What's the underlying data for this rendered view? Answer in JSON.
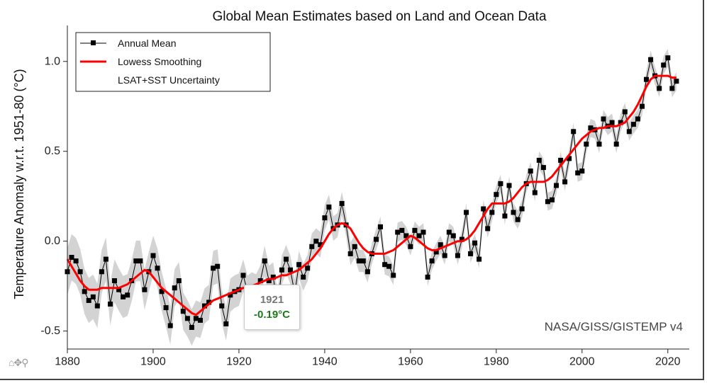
{
  "chart_data": {
    "type": "line",
    "title": "Global Mean Estimates based on Land and Ocean Data",
    "xlabel": "",
    "ylabel": "Temperature Anomaly w.r.t. 1951-80 (°C)",
    "xlim": [
      1880,
      2025
    ],
    "ylim": [
      -0.6,
      1.2
    ],
    "x_ticks": [
      1880,
      1900,
      1920,
      1940,
      1960,
      1980,
      2000,
      2020
    ],
    "x_tick_labels": [
      "1880",
      "1900",
      "1920",
      "1940",
      "1960",
      "1980",
      "2000",
      "2020"
    ],
    "y_ticks": [
      -0.5,
      0.0,
      0.5,
      1.0
    ],
    "y_tick_labels": [
      "-0.5",
      "0.0",
      "0.5",
      "1.0"
    ],
    "grid": false,
    "legend_position": "top-left",
    "credit": "NASA/GISS/GISTEMP v4",
    "colors": {
      "annual": "#000000",
      "lowess": "#ff0000",
      "uncertainty": "#d3d3d3"
    },
    "x": [
      1880,
      1881,
      1882,
      1883,
      1884,
      1885,
      1886,
      1887,
      1888,
      1889,
      1890,
      1891,
      1892,
      1893,
      1894,
      1895,
      1896,
      1897,
      1898,
      1899,
      1900,
      1901,
      1902,
      1903,
      1904,
      1905,
      1906,
      1907,
      1908,
      1909,
      1910,
      1911,
      1912,
      1913,
      1914,
      1915,
      1916,
      1917,
      1918,
      1919,
      1920,
      1921,
      1922,
      1923,
      1924,
      1925,
      1926,
      1927,
      1928,
      1929,
      1930,
      1931,
      1932,
      1933,
      1934,
      1935,
      1936,
      1937,
      1938,
      1939,
      1940,
      1941,
      1942,
      1943,
      1944,
      1945,
      1946,
      1947,
      1948,
      1949,
      1950,
      1951,
      1952,
      1953,
      1954,
      1955,
      1956,
      1957,
      1958,
      1959,
      1960,
      1961,
      1962,
      1963,
      1964,
      1965,
      1966,
      1967,
      1968,
      1969,
      1970,
      1971,
      1972,
      1973,
      1974,
      1975,
      1976,
      1977,
      1978,
      1979,
      1980,
      1981,
      1982,
      1983,
      1984,
      1985,
      1986,
      1987,
      1988,
      1989,
      1990,
      1991,
      1992,
      1993,
      1994,
      1995,
      1996,
      1997,
      1998,
      1999,
      2000,
      2001,
      2002,
      2003,
      2004,
      2005,
      2006,
      2007,
      2008,
      2009,
      2010,
      2011,
      2012,
      2013,
      2014,
      2015,
      2016,
      2017,
      2018,
      2019,
      2020,
      2021,
      2022
    ],
    "series": [
      {
        "name": "Annual Mean",
        "values": [
          -0.17,
          -0.09,
          -0.11,
          -0.17,
          -0.28,
          -0.33,
          -0.31,
          -0.36,
          -0.17,
          -0.1,
          -0.35,
          -0.22,
          -0.27,
          -0.31,
          -0.3,
          -0.22,
          -0.11,
          -0.11,
          -0.27,
          -0.17,
          -0.08,
          -0.15,
          -0.28,
          -0.37,
          -0.47,
          -0.26,
          -0.22,
          -0.39,
          -0.43,
          -0.48,
          -0.43,
          -0.44,
          -0.36,
          -0.34,
          -0.15,
          -0.14,
          -0.36,
          -0.46,
          -0.3,
          -0.28,
          -0.27,
          -0.19,
          -0.28,
          -0.26,
          -0.27,
          -0.22,
          -0.11,
          -0.22,
          -0.2,
          -0.36,
          -0.16,
          -0.1,
          -0.16,
          -0.29,
          -0.13,
          -0.2,
          -0.15,
          -0.03,
          -0.0,
          -0.02,
          0.13,
          0.19,
          0.07,
          0.09,
          0.21,
          0.09,
          -0.07,
          -0.03,
          -0.11,
          -0.11,
          -0.17,
          -0.07,
          0.01,
          0.08,
          -0.13,
          -0.14,
          -0.19,
          0.05,
          0.06,
          0.03,
          -0.03,
          0.06,
          0.03,
          0.05,
          -0.2,
          -0.11,
          -0.06,
          -0.02,
          -0.08,
          0.05,
          0.03,
          -0.08,
          0.01,
          0.16,
          -0.07,
          -0.01,
          -0.1,
          0.18,
          0.07,
          0.16,
          0.26,
          0.32,
          0.14,
          0.31,
          0.16,
          0.12,
          0.18,
          0.32,
          0.39,
          0.27,
          0.45,
          0.41,
          0.22,
          0.23,
          0.31,
          0.45,
          0.33,
          0.46,
          0.61,
          0.38,
          0.39,
          0.54,
          0.63,
          0.62,
          0.54,
          0.68,
          0.64,
          0.66,
          0.54,
          0.66,
          0.72,
          0.61,
          0.65,
          0.68,
          0.75,
          0.9,
          1.01,
          0.92,
          0.85,
          0.98,
          1.02,
          0.85,
          0.89
        ]
      },
      {
        "name": "Lowess Smoothing",
        "values": [
          -0.1,
          -0.14,
          -0.18,
          -0.22,
          -0.25,
          -0.27,
          -0.27,
          -0.27,
          -0.26,
          -0.26,
          -0.26,
          -0.26,
          -0.26,
          -0.25,
          -0.24,
          -0.22,
          -0.2,
          -0.18,
          -0.16,
          -0.17,
          -0.2,
          -0.23,
          -0.26,
          -0.28,
          -0.3,
          -0.32,
          -0.34,
          -0.36,
          -0.38,
          -0.4,
          -0.41,
          -0.39,
          -0.37,
          -0.35,
          -0.33,
          -0.32,
          -0.31,
          -0.3,
          -0.29,
          -0.28,
          -0.27,
          -0.26,
          -0.26,
          -0.25,
          -0.24,
          -0.23,
          -0.22,
          -0.21,
          -0.21,
          -0.2,
          -0.19,
          -0.19,
          -0.18,
          -0.17,
          -0.16,
          -0.14,
          -0.12,
          -0.1,
          -0.07,
          -0.04,
          0.0,
          0.04,
          0.07,
          0.09,
          0.1,
          0.09,
          0.07,
          0.03,
          -0.01,
          -0.04,
          -0.06,
          -0.07,
          -0.07,
          -0.07,
          -0.07,
          -0.06,
          -0.05,
          -0.03,
          -0.01,
          0.01,
          0.03,
          0.02,
          0.0,
          -0.02,
          -0.04,
          -0.05,
          -0.05,
          -0.04,
          -0.03,
          -0.02,
          -0.01,
          0.0,
          0.0,
          0.01,
          0.03,
          0.06,
          0.1,
          0.14,
          0.18,
          0.21,
          0.21,
          0.21,
          0.21,
          0.22,
          0.24,
          0.27,
          0.3,
          0.32,
          0.33,
          0.33,
          0.33,
          0.33,
          0.34,
          0.36,
          0.39,
          0.42,
          0.45,
          0.48,
          0.51,
          0.54,
          0.57,
          0.59,
          0.61,
          0.62,
          0.63,
          0.63,
          0.64,
          0.64,
          0.64,
          0.65,
          0.66,
          0.69,
          0.72,
          0.76,
          0.81,
          0.86,
          0.9,
          0.92,
          0.92,
          0.92,
          0.92,
          0.91,
          0.91
        ]
      }
    ],
    "uncertainty_band": {
      "name": "LSAT+SST Uncertainty",
      "half_width_start": 0.13,
      "half_width_end": 0.05,
      "transition_years": [
        1880,
        1960
      ]
    },
    "tooltip": {
      "year": "1921",
      "value": "-0.19°C"
    },
    "legend": [
      {
        "label": "Annual Mean"
      },
      {
        "label": "Lowess Smoothing"
      },
      {
        "label": "LSAT+SST Uncertainty"
      }
    ]
  },
  "toolbar": {
    "icons": [
      "home-icon",
      "pan-icon",
      "zoom-icon"
    ],
    "text": "⌂✥⚲"
  }
}
